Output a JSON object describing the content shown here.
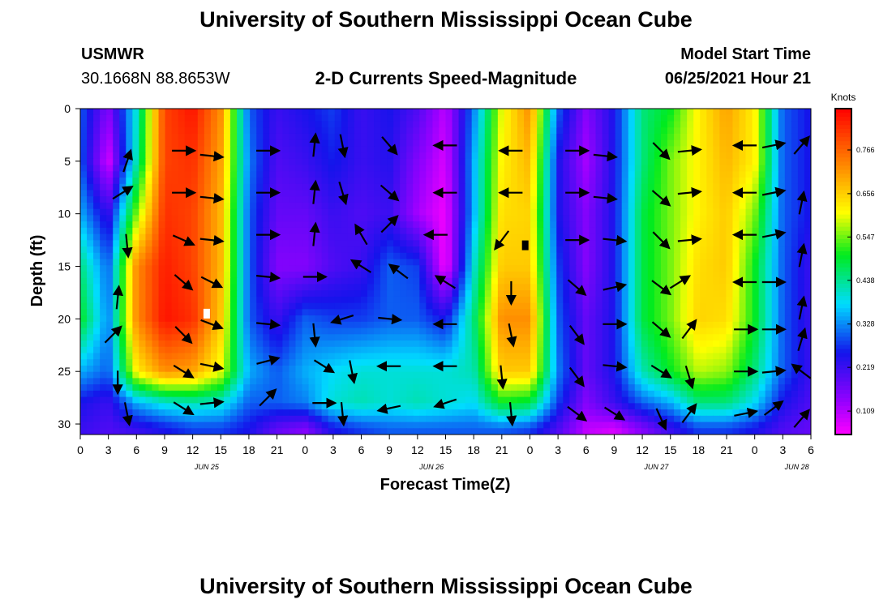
{
  "page": {
    "title_top": "University of Southern Mississippi Ocean Cube",
    "title_bottom": "University of Southern Mississippi Ocean Cube",
    "station": "USMWR",
    "coords": "30.1668N  88.8653W",
    "plot_title": "2-D Currents Speed-Magnitude",
    "model_label": "Model Start Time",
    "model_time": "06/25/2021 Hour 21"
  },
  "chart_data": {
    "type": "heatmap",
    "title": "2-D Currents Speed-Magnitude",
    "xlabel": "Forecast Time(Z)",
    "ylabel": "Depth (ft)",
    "x_tick_labels": [
      "0",
      "3",
      "6",
      "9",
      "12",
      "15",
      "18",
      "21",
      "0",
      "3",
      "6",
      "9",
      "12",
      "15",
      "18",
      "21",
      "0",
      "3",
      "6",
      "9",
      "12",
      "15",
      "18",
      "21",
      "0",
      "3",
      "6"
    ],
    "x_date_labels": [
      {
        "label": "JUN 25",
        "at_index": 4.5
      },
      {
        "label": "JUN 26",
        "at_index": 12.5
      },
      {
        "label": "JUN 27",
        "at_index": 20.5
      },
      {
        "label": "JUN 28",
        "at_index": 25.5
      }
    ],
    "y_ticks": [
      0,
      5,
      10,
      15,
      20,
      25,
      30
    ],
    "ylim": [
      0,
      31
    ],
    "forecast_hours_range": [
      0,
      78
    ],
    "colorbar": {
      "unit": "Knots",
      "tick_labels": [
        "0.766",
        "0.656",
        "0.547",
        "0.438",
        "0.328",
        "0.219",
        "0.109"
      ],
      "range": [
        0.05,
        0.87
      ]
    },
    "speed_field_knots": {
      "rows_depth_ft": [
        0,
        5,
        10,
        15,
        20,
        25,
        28,
        30.5
      ],
      "columns_hour": [
        0,
        3,
        6,
        9,
        12,
        15,
        18,
        21,
        24,
        27,
        30,
        33,
        36,
        39,
        42,
        45,
        48,
        51,
        54,
        57,
        60,
        63,
        66,
        69,
        72,
        75,
        78
      ],
      "values": [
        [
          0.3,
          0.15,
          0.4,
          0.8,
          0.85,
          0.72,
          0.3,
          0.22,
          0.25,
          0.28,
          0.22,
          0.25,
          0.2,
          0.1,
          0.32,
          0.6,
          0.72,
          0.3,
          0.15,
          0.25,
          0.45,
          0.5,
          0.62,
          0.7,
          0.62,
          0.3,
          0.25
        ],
        [
          0.3,
          0.08,
          0.42,
          0.8,
          0.82,
          0.7,
          0.32,
          0.2,
          0.22,
          0.26,
          0.22,
          0.24,
          0.15,
          0.08,
          0.35,
          0.62,
          0.68,
          0.25,
          0.12,
          0.25,
          0.45,
          0.55,
          0.62,
          0.68,
          0.62,
          0.3,
          0.25
        ],
        [
          0.35,
          0.22,
          0.55,
          0.82,
          0.8,
          0.68,
          0.3,
          0.18,
          0.18,
          0.22,
          0.2,
          0.22,
          0.12,
          0.06,
          0.35,
          0.64,
          0.65,
          0.25,
          0.15,
          0.25,
          0.48,
          0.55,
          0.62,
          0.66,
          0.55,
          0.3,
          0.25
        ],
        [
          0.45,
          0.3,
          0.72,
          0.84,
          0.8,
          0.68,
          0.3,
          0.15,
          0.15,
          0.2,
          0.22,
          0.3,
          0.28,
          0.05,
          0.4,
          0.66,
          0.66,
          0.28,
          0.15,
          0.25,
          0.48,
          0.55,
          0.64,
          0.66,
          0.5,
          0.3,
          0.22
        ],
        [
          0.5,
          0.32,
          0.72,
          0.85,
          0.82,
          0.66,
          0.3,
          0.22,
          0.3,
          0.28,
          0.28,
          0.3,
          0.3,
          0.25,
          0.45,
          0.72,
          0.72,
          0.3,
          0.18,
          0.25,
          0.48,
          0.55,
          0.65,
          0.64,
          0.5,
          0.3,
          0.22
        ],
        [
          0.35,
          0.3,
          0.62,
          0.72,
          0.7,
          0.6,
          0.35,
          0.3,
          0.35,
          0.38,
          0.4,
          0.4,
          0.4,
          0.4,
          0.42,
          0.66,
          0.66,
          0.32,
          0.18,
          0.25,
          0.42,
          0.5,
          0.58,
          0.56,
          0.45,
          0.3,
          0.22
        ],
        [
          0.25,
          0.22,
          0.35,
          0.4,
          0.42,
          0.4,
          0.3,
          0.3,
          0.32,
          0.4,
          0.42,
          0.4,
          0.42,
          0.4,
          0.38,
          0.5,
          0.48,
          0.28,
          0.15,
          0.22,
          0.3,
          0.35,
          0.45,
          0.45,
          0.38,
          0.25,
          0.2
        ],
        [
          0.22,
          0.2,
          0.22,
          0.25,
          0.28,
          0.28,
          0.25,
          0.18,
          0.15,
          0.25,
          0.28,
          0.3,
          0.3,
          0.3,
          0.3,
          0.3,
          0.28,
          0.2,
          0.1,
          0.08,
          0.15,
          0.22,
          0.28,
          0.28,
          0.25,
          0.2,
          0.18
        ]
      ]
    },
    "vectors": [
      {
        "hour": 5,
        "depth": 5,
        "u": 0.3,
        "v": 0.9
      },
      {
        "hour": 11,
        "depth": 4,
        "u": 1,
        "v": 0
      },
      {
        "hour": 14,
        "depth": 4.5,
        "u": 0.95,
        "v": -0.1
      },
      {
        "hour": 20,
        "depth": 4,
        "u": 1,
        "v": 0
      },
      {
        "hour": 25,
        "depth": 3.5,
        "u": 0.1,
        "v": 1
      },
      {
        "hour": 28,
        "depth": 3.5,
        "u": 0.2,
        "v": -1
      },
      {
        "hour": 33,
        "depth": 3.5,
        "u": 0.6,
        "v": -0.7
      },
      {
        "hour": 39,
        "depth": 3.5,
        "u": -1,
        "v": 0
      },
      {
        "hour": 46,
        "depth": 4,
        "u": -1,
        "v": 0
      },
      {
        "hour": 53,
        "depth": 4,
        "u": 1,
        "v": 0
      },
      {
        "hour": 56,
        "depth": 4.5,
        "u": 0.95,
        "v": -0.1
      },
      {
        "hour": 62,
        "depth": 4,
        "u": 0.7,
        "v": -0.7
      },
      {
        "hour": 65,
        "depth": 4,
        "u": 1,
        "v": 0.1
      },
      {
        "hour": 71,
        "depth": 3.5,
        "u": -1,
        "v": 0
      },
      {
        "hour": 74,
        "depth": 3.5,
        "u": 1,
        "v": 0.2
      },
      {
        "hour": 77,
        "depth": 3.5,
        "u": 0.6,
        "v": 0.7
      },
      {
        "hour": 4.5,
        "depth": 8,
        "u": 0.8,
        "v": 0.5
      },
      {
        "hour": 11,
        "depth": 8,
        "u": 1,
        "v": 0
      },
      {
        "hour": 14,
        "depth": 8.5,
        "u": 0.95,
        "v": -0.1
      },
      {
        "hour": 20,
        "depth": 8,
        "u": 1,
        "v": 0
      },
      {
        "hour": 25,
        "depth": 8,
        "u": 0.1,
        "v": 1
      },
      {
        "hour": 28,
        "depth": 8,
        "u": 0.3,
        "v": -1
      },
      {
        "hour": 33,
        "depth": 8,
        "u": 0.7,
        "v": -0.6
      },
      {
        "hour": 39,
        "depth": 8,
        "u": -1,
        "v": 0
      },
      {
        "hour": 46,
        "depth": 8,
        "u": -1,
        "v": 0
      },
      {
        "hour": 53,
        "depth": 8,
        "u": 1,
        "v": 0
      },
      {
        "hour": 56,
        "depth": 8.5,
        "u": 0.95,
        "v": -0.1
      },
      {
        "hour": 62,
        "depth": 8.5,
        "u": 0.7,
        "v": -0.6
      },
      {
        "hour": 65,
        "depth": 8,
        "u": 1,
        "v": 0.1
      },
      {
        "hour": 71,
        "depth": 8,
        "u": -1,
        "v": 0
      },
      {
        "hour": 74,
        "depth": 8,
        "u": 1,
        "v": 0.2
      },
      {
        "hour": 77,
        "depth": 9,
        "u": 0.2,
        "v": 1
      },
      {
        "hour": 5,
        "depth": 13,
        "u": 0.1,
        "v": -1
      },
      {
        "hour": 11,
        "depth": 12.5,
        "u": 0.9,
        "v": -0.4
      },
      {
        "hour": 14,
        "depth": 12.5,
        "u": 0.95,
        "v": -0.1
      },
      {
        "hour": 20,
        "depth": 12,
        "u": 1,
        "v": 0
      },
      {
        "hour": 25,
        "depth": 12,
        "u": 0.1,
        "v": 1
      },
      {
        "hour": 30,
        "depth": 12,
        "u": -0.5,
        "v": 0.85
      },
      {
        "hour": 33,
        "depth": 11,
        "u": 0.7,
        "v": 0.7
      },
      {
        "hour": 38,
        "depth": 12,
        "u": -1,
        "v": 0
      },
      {
        "hour": 45,
        "depth": 12.5,
        "u": -0.6,
        "v": -0.8
      },
      {
        "hour": 53,
        "depth": 12.5,
        "u": 1,
        "v": 0
      },
      {
        "hour": 57,
        "depth": 12.5,
        "u": 0.95,
        "v": -0.1
      },
      {
        "hour": 62,
        "depth": 12.5,
        "u": 0.7,
        "v": -0.7
      },
      {
        "hour": 65,
        "depth": 12.5,
        "u": 1,
        "v": 0.1
      },
      {
        "hour": 71,
        "depth": 12,
        "u": -1,
        "v": 0
      },
      {
        "hour": 74,
        "depth": 12,
        "u": 1,
        "v": 0.2
      },
      {
        "hour": 77,
        "depth": 14,
        "u": 0.2,
        "v": 1
      },
      {
        "hour": 4,
        "depth": 18,
        "u": 0.1,
        "v": 1
      },
      {
        "hour": 11,
        "depth": 16.5,
        "u": 0.7,
        "v": -0.6
      },
      {
        "hour": 14,
        "depth": 16.5,
        "u": 0.8,
        "v": -0.4
      },
      {
        "hour": 20,
        "depth": 16,
        "u": 1,
        "v": -0.1
      },
      {
        "hour": 25,
        "depth": 16,
        "u": 1,
        "v": 0
      },
      {
        "hour": 30,
        "depth": 15,
        "u": -0.8,
        "v": 0.5
      },
      {
        "hour": 34,
        "depth": 15.5,
        "u": -0.8,
        "v": 0.6
      },
      {
        "hour": 39,
        "depth": 16.5,
        "u": -0.8,
        "v": 0.5
      },
      {
        "hour": 46,
        "depth": 17.5,
        "u": 0,
        "v": -1
      },
      {
        "hour": 53,
        "depth": 17,
        "u": 0.7,
        "v": -0.6
      },
      {
        "hour": 57,
        "depth": 17,
        "u": 0.9,
        "v": 0.2
      },
      {
        "hour": 62,
        "depth": 17,
        "u": 0.8,
        "v": -0.6
      },
      {
        "hour": 64,
        "depth": 16.5,
        "u": 0.8,
        "v": 0.5
      },
      {
        "hour": 71,
        "depth": 16.5,
        "u": -1,
        "v": 0
      },
      {
        "hour": 74,
        "depth": 16.5,
        "u": 1,
        "v": 0
      },
      {
        "hour": 77,
        "depth": 19,
        "u": 0.2,
        "v": 1
      },
      {
        "hour": 3.5,
        "depth": 21.5,
        "u": 0.7,
        "v": 0.7
      },
      {
        "hour": 11,
        "depth": 21.5,
        "u": 0.7,
        "v": -0.7
      },
      {
        "hour": 14,
        "depth": 20.5,
        "u": 0.8,
        "v": -0.3
      },
      {
        "hour": 20,
        "depth": 20.5,
        "u": 1,
        "v": -0.1
      },
      {
        "hour": 25,
        "depth": 21.5,
        "u": 0.1,
        "v": -1
      },
      {
        "hour": 28,
        "depth": 20,
        "u": -0.95,
        "v": -0.3
      },
      {
        "hour": 33,
        "depth": 20,
        "u": 1,
        "v": -0.1
      },
      {
        "hour": 39,
        "depth": 20.5,
        "u": -1,
        "v": 0
      },
      {
        "hour": 46,
        "depth": 21.5,
        "u": 0.2,
        "v": -1
      },
      {
        "hour": 53,
        "depth": 21.5,
        "u": 0.6,
        "v": -0.8
      },
      {
        "hour": 57,
        "depth": 20.5,
        "u": 0.9,
        "v": 0
      },
      {
        "hour": 62,
        "depth": 21,
        "u": 0.7,
        "v": -0.6
      },
      {
        "hour": 65,
        "depth": 21,
        "u": 0.6,
        "v": 0.8
      },
      {
        "hour": 71,
        "depth": 21,
        "u": 1,
        "v": 0
      },
      {
        "hour": 74,
        "depth": 21,
        "u": 1,
        "v": 0
      },
      {
        "hour": 77,
        "depth": 22,
        "u": 0.3,
        "v": 1
      },
      {
        "hour": 4,
        "depth": 26,
        "u": 0,
        "v": -1
      },
      {
        "hour": 11,
        "depth": 25,
        "u": 0.8,
        "v": -0.5
      },
      {
        "hour": 14,
        "depth": 24.5,
        "u": 0.95,
        "v": -0.2
      },
      {
        "hour": 20,
        "depth": 24,
        "u": 0.95,
        "v": 0.25
      },
      {
        "hour": 26,
        "depth": 24.5,
        "u": 0.8,
        "v": -0.5
      },
      {
        "hour": 29,
        "depth": 25,
        "u": 0.2,
        "v": -1
      },
      {
        "hour": 33,
        "depth": 24.5,
        "u": -1,
        "v": 0
      },
      {
        "hour": 39,
        "depth": 24.5,
        "u": -1,
        "v": 0
      },
      {
        "hour": 45,
        "depth": 25.5,
        "u": 0.1,
        "v": -1
      },
      {
        "hour": 53,
        "depth": 25.5,
        "u": 0.6,
        "v": -0.8
      },
      {
        "hour": 57,
        "depth": 24.5,
        "u": 1,
        "v": -0.1
      },
      {
        "hour": 62,
        "depth": 25,
        "u": 0.8,
        "v": -0.5
      },
      {
        "hour": 65,
        "depth": 25.5,
        "u": 0.3,
        "v": -1
      },
      {
        "hour": 71,
        "depth": 25,
        "u": 1,
        "v": 0
      },
      {
        "hour": 74,
        "depth": 25,
        "u": 1,
        "v": 0.1
      },
      {
        "hour": 77,
        "depth": 25,
        "u": -0.8,
        "v": 0.6
      },
      {
        "hour": 5,
        "depth": 29,
        "u": 0.2,
        "v": -1
      },
      {
        "hour": 11,
        "depth": 28.5,
        "u": 0.8,
        "v": -0.5
      },
      {
        "hour": 14,
        "depth": 28,
        "u": 1,
        "v": 0.1
      },
      {
        "hour": 20,
        "depth": 27.5,
        "u": 0.7,
        "v": 0.7
      },
      {
        "hour": 26,
        "depth": 28,
        "u": 1,
        "v": 0
      },
      {
        "hour": 28,
        "depth": 29,
        "u": 0.1,
        "v": -1
      },
      {
        "hour": 33,
        "depth": 28.5,
        "u": -0.95,
        "v": -0.2
      },
      {
        "hour": 39,
        "depth": 28,
        "u": -0.9,
        "v": -0.3
      },
      {
        "hour": 46,
        "depth": 29,
        "u": 0.1,
        "v": -1
      },
      {
        "hour": 53,
        "depth": 29,
        "u": 0.8,
        "v": -0.6
      },
      {
        "hour": 57,
        "depth": 29,
        "u": 0.8,
        "v": -0.5
      },
      {
        "hour": 62,
        "depth": 29.5,
        "u": 0.4,
        "v": -0.9
      },
      {
        "hour": 65,
        "depth": 29,
        "u": 0.6,
        "v": 0.8
      },
      {
        "hour": 71,
        "depth": 29,
        "u": 1,
        "v": 0.2
      },
      {
        "hour": 74,
        "depth": 28.5,
        "u": 0.8,
        "v": 0.6
      },
      {
        "hour": 77,
        "depth": 29.5,
        "u": 0.6,
        "v": 0.7
      }
    ],
    "markers": [
      {
        "hour": 13.5,
        "depth": 19.5,
        "color": "#ffffff"
      },
      {
        "hour": 47.5,
        "depth": 13,
        "color": "#000000"
      }
    ]
  }
}
